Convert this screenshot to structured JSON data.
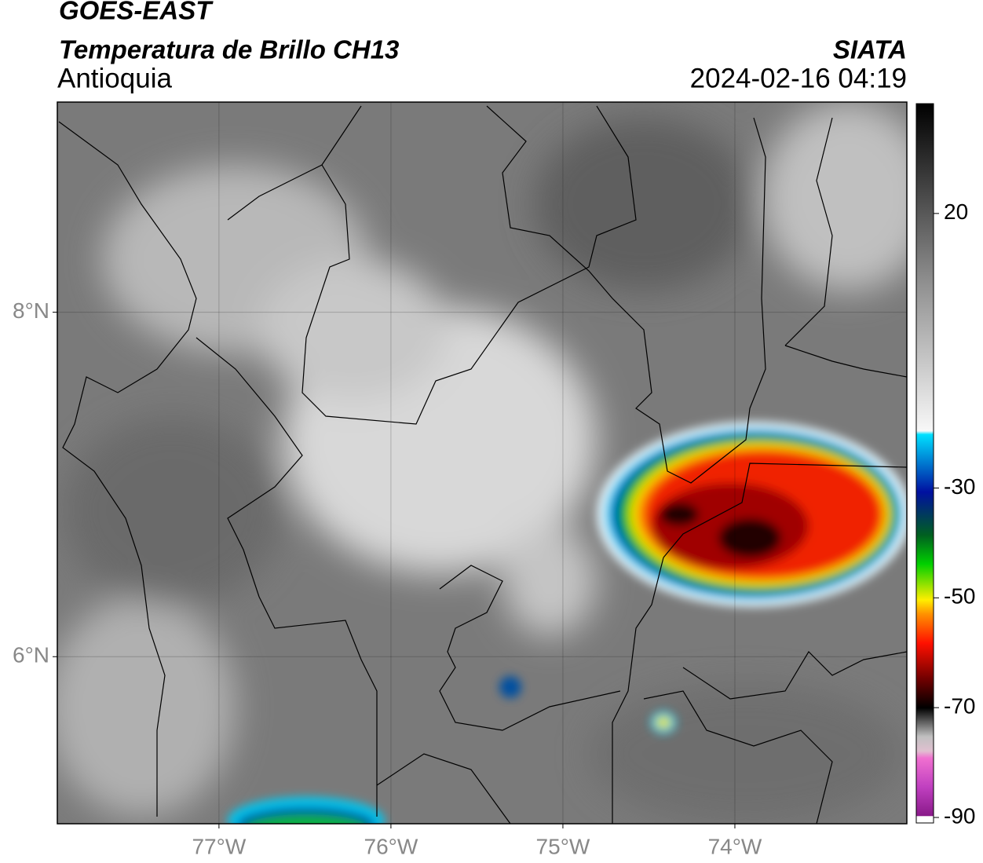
{
  "header": {
    "title": "GOES-EAST",
    "subtitle": "Temperatura de Brillo CH13",
    "region": "Antioquia",
    "source": "SIATA",
    "datetime": "2024-02-16 04:19"
  },
  "map": {
    "xlim": [
      -77.94,
      -73.0
    ],
    "ylim": [
      5.03,
      9.22
    ],
    "xticks": [
      {
        "value": -77,
        "label": "77°W"
      },
      {
        "value": -76,
        "label": "76°W"
      },
      {
        "value": -75,
        "label": "75°W"
      },
      {
        "value": -74,
        "label": "74°W"
      }
    ],
    "yticks": [
      {
        "value": 8,
        "label": "8°N"
      },
      {
        "value": 6,
        "label": "6°N"
      }
    ],
    "grid": true
  },
  "colorbar": {
    "clim": [
      -91,
      40
    ],
    "ticks": [
      20,
      -30,
      -50,
      -70,
      -90
    ]
  }
}
